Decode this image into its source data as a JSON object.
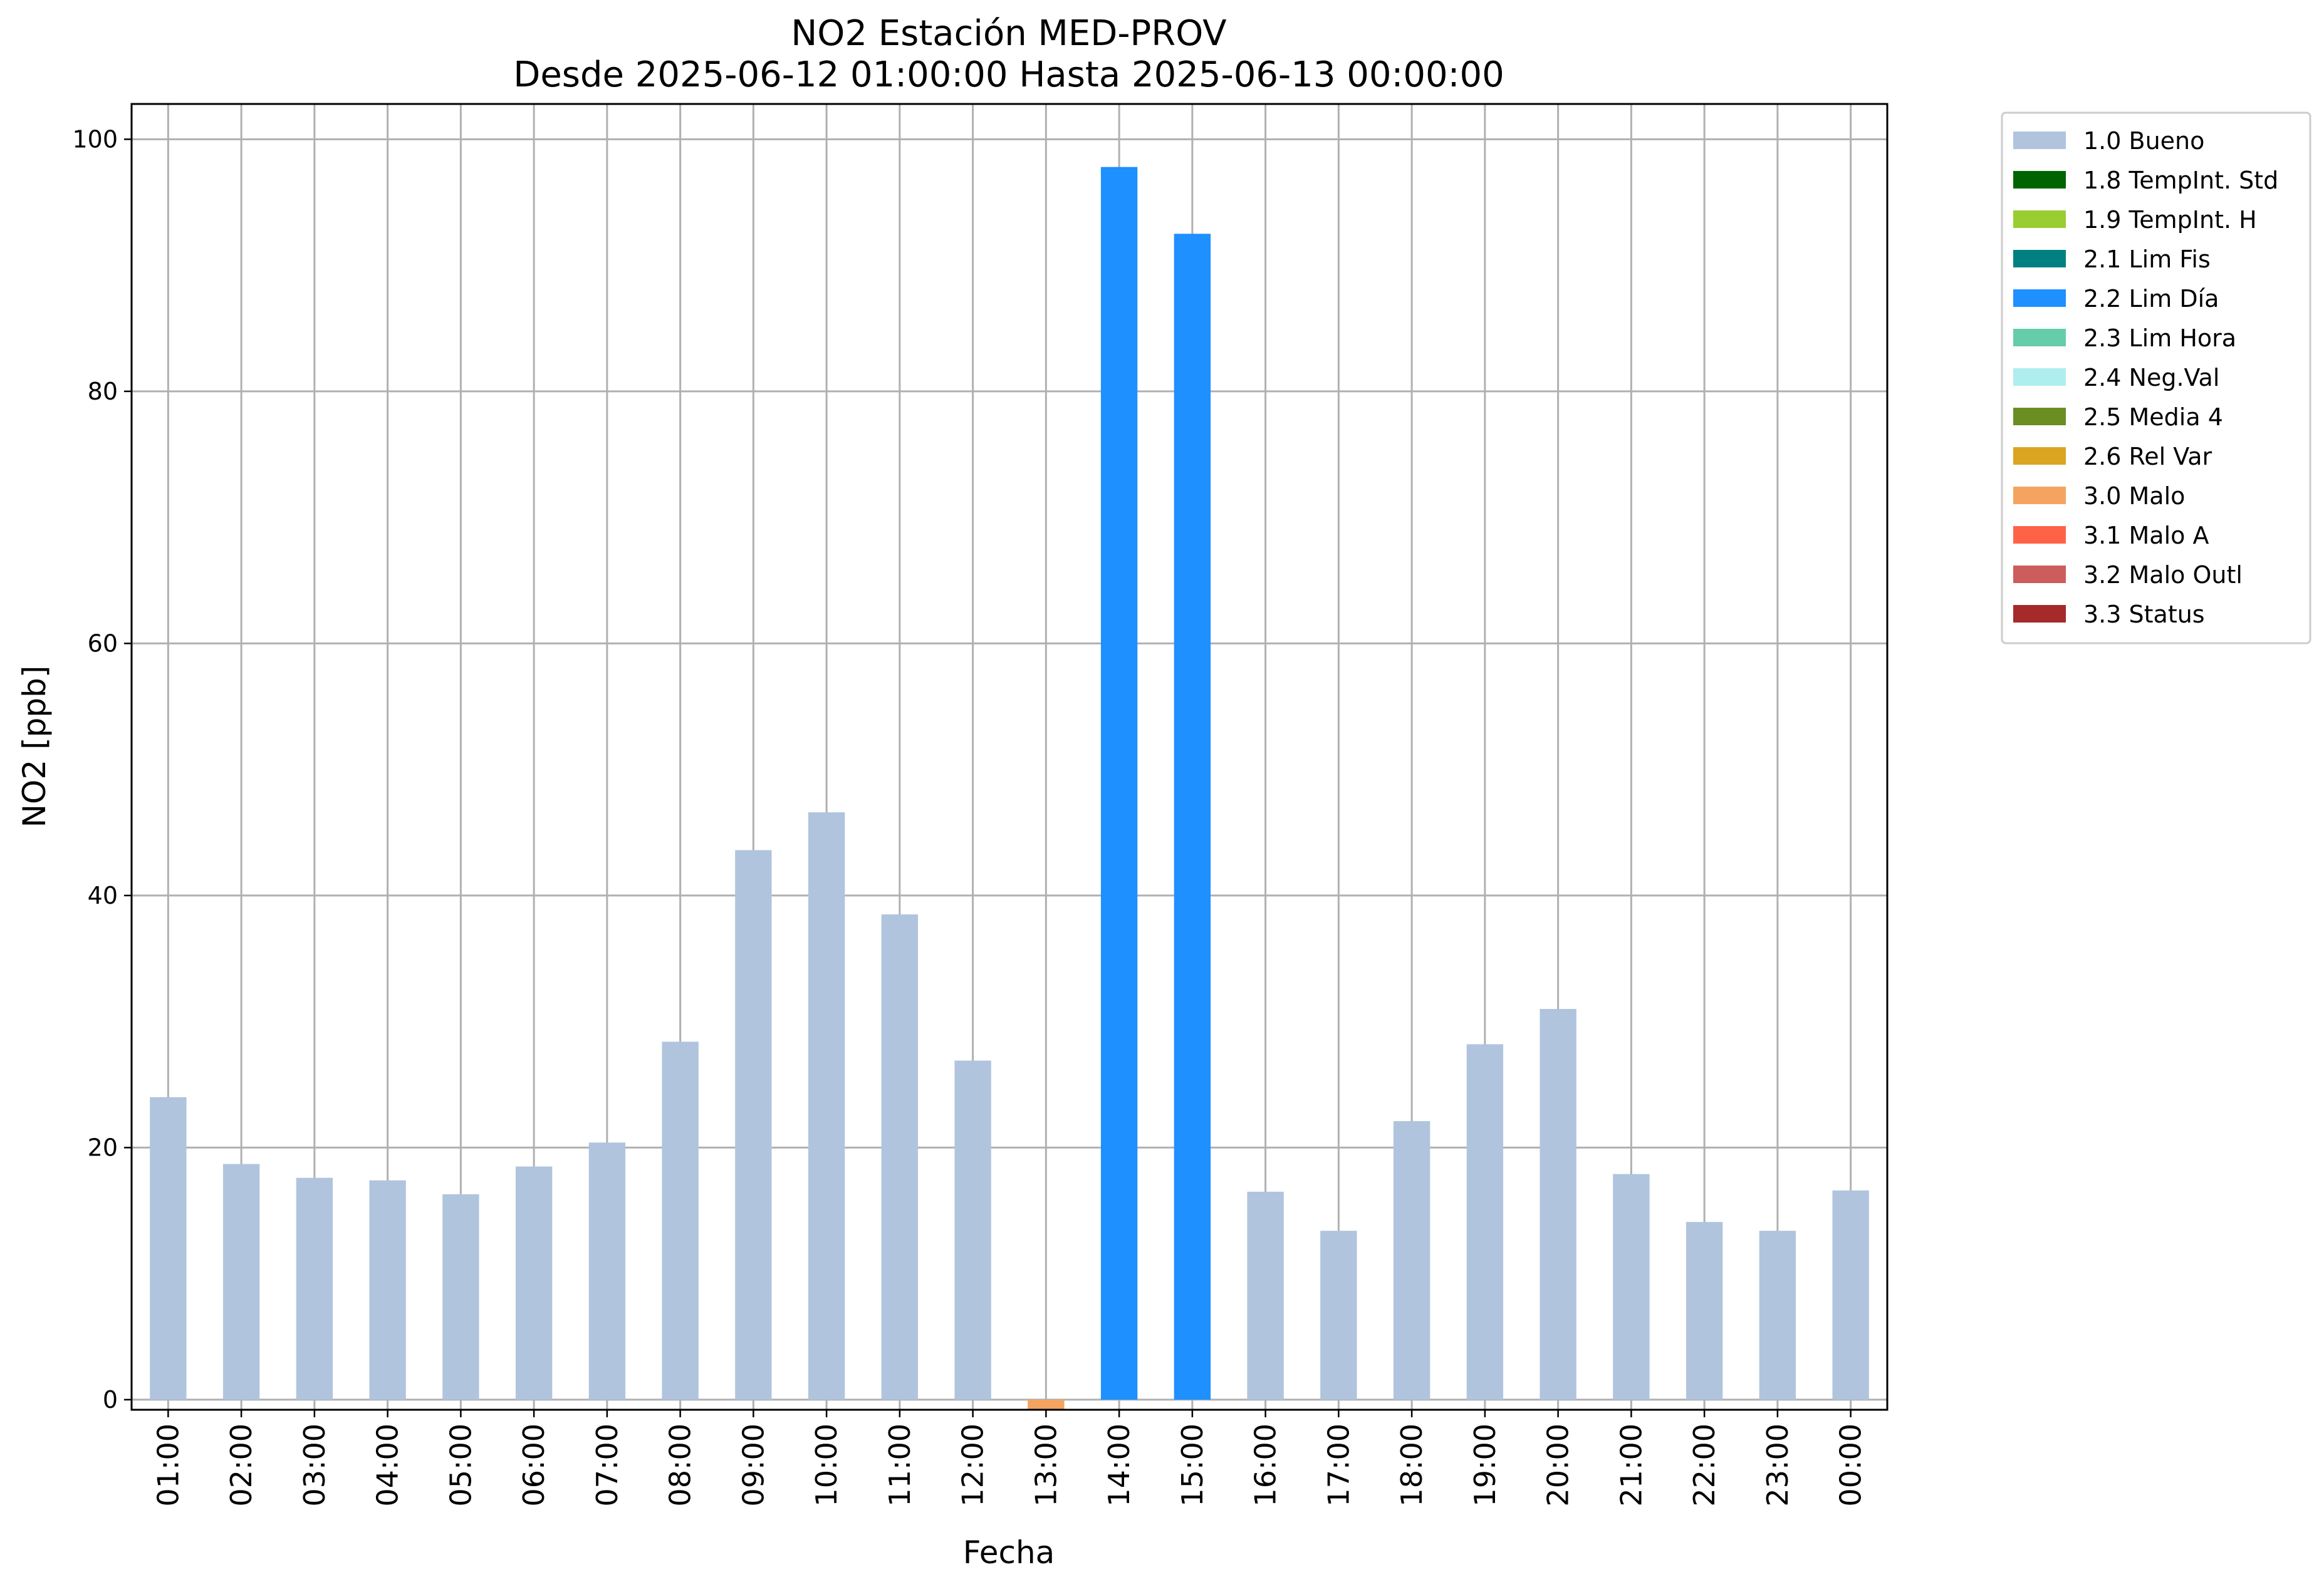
{
  "chart_data": {
    "type": "bar",
    "title": "NO2 Estación MED-PROV",
    "subtitle": "Desde 2025-06-12 01:00:00 Hasta 2025-06-13 00:00:00",
    "xlabel": "Fecha",
    "ylabel": "NO2 [ppb]",
    "ylim": [
      -0.8,
      102.8
    ],
    "yticks": [
      0,
      20,
      40,
      60,
      80,
      100
    ],
    "grid": true,
    "legend_position": "outside-right",
    "categories": [
      "01:00",
      "02:00",
      "03:00",
      "04:00",
      "05:00",
      "06:00",
      "07:00",
      "08:00",
      "09:00",
      "10:00",
      "11:00",
      "12:00",
      "13:00",
      "14:00",
      "15:00",
      "16:00",
      "17:00",
      "18:00",
      "19:00",
      "20:00",
      "21:00",
      "22:00",
      "23:00",
      "00:00"
    ],
    "values": [
      24.0,
      18.7,
      17.6,
      17.4,
      16.3,
      18.5,
      20.4,
      28.4,
      43.6,
      46.6,
      38.5,
      26.9,
      -0.8,
      97.8,
      92.5,
      16.5,
      13.4,
      22.1,
      28.2,
      31.0,
      17.9,
      14.1,
      13.4,
      16.6
    ],
    "flags": [
      "1.0 Bueno",
      "1.0 Bueno",
      "1.0 Bueno",
      "1.0 Bueno",
      "1.0 Bueno",
      "1.0 Bueno",
      "1.0 Bueno",
      "1.0 Bueno",
      "1.0 Bueno",
      "1.0 Bueno",
      "1.0 Bueno",
      "1.0 Bueno",
      "3.0 Malo",
      "2.2 Lim Día",
      "2.2 Lim Día",
      "1.0 Bueno",
      "1.0 Bueno",
      "1.0 Bueno",
      "1.0 Bueno",
      "1.0 Bueno",
      "1.0 Bueno",
      "1.0 Bueno",
      "1.0 Bueno",
      "1.0 Bueno"
    ],
    "legend": [
      {
        "name": "1.0 Bueno",
        "color": "#b0c4de"
      },
      {
        "name": "1.8 TempInt. Std",
        "color": "#006400"
      },
      {
        "name": "1.9 TempInt. H",
        "color": "#9acd32"
      },
      {
        "name": "2.1 Lim Fis",
        "color": "#008080"
      },
      {
        "name": "2.2 Lim Día",
        "color": "#1e90ff"
      },
      {
        "name": "2.3 Lim Hora",
        "color": "#66cdaa"
      },
      {
        "name": "2.4 Neg.Val",
        "color": "#afeeee"
      },
      {
        "name": "2.5 Media 4",
        "color": "#6b8e23"
      },
      {
        "name": "2.6 Rel Var",
        "color": "#daa520"
      },
      {
        "name": "3.0 Malo",
        "color": "#f4a460"
      },
      {
        "name": "3.1 Malo A",
        "color": "#ff6347"
      },
      {
        "name": "3.2 Malo Outl",
        "color": "#cd5c5c"
      },
      {
        "name": "3.3 Status",
        "color": "#a52a2a"
      }
    ]
  }
}
